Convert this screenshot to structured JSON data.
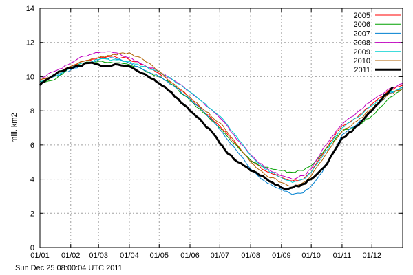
{
  "timestamp": "Sun Dec 25 08:00:04 UTC 2011",
  "chart_data": {
    "type": "line",
    "title": "",
    "xlabel": "",
    "ylabel": "mill. km2",
    "ylim": [
      0,
      14
    ],
    "yticks": [
      0,
      2,
      4,
      6,
      8,
      10,
      12,
      14
    ],
    "xlim": [
      1,
      366
    ],
    "xticks": [
      {
        "day": 1,
        "label": "01/01"
      },
      {
        "day": 32,
        "label": "01/02"
      },
      {
        "day": 60,
        "label": "01/03"
      },
      {
        "day": 91,
        "label": "01/04"
      },
      {
        "day": 121,
        "label": "01/05"
      },
      {
        "day": 152,
        "label": "01/06"
      },
      {
        "day": 182,
        "label": "01/07"
      },
      {
        "day": 213,
        "label": "01/08"
      },
      {
        "day": 244,
        "label": "01/09"
      },
      {
        "day": 274,
        "label": "01/10"
      },
      {
        "day": 305,
        "label": "01/11"
      },
      {
        "day": 335,
        "label": "01/12"
      }
    ],
    "grid": true,
    "legend_position": "top-right",
    "series": [
      {
        "name": "2005",
        "color": "#ff0000",
        "width": 1,
        "x": [
          1,
          15,
          32,
          45,
          60,
          75,
          91,
          105,
          121,
          135,
          152,
          165,
          182,
          196,
          213,
          227,
          244,
          255,
          266,
          274,
          285,
          300,
          305,
          320,
          335,
          350,
          366
        ],
        "y": [
          9.8,
          10.1,
          10.6,
          10.9,
          11.1,
          11.2,
          11.0,
          10.7,
          10.2,
          9.6,
          8.8,
          8.0,
          7.1,
          6.2,
          5.1,
          4.5,
          4.1,
          3.9,
          4.0,
          4.4,
          5.4,
          6.8,
          7.1,
          7.6,
          8.4,
          9.1,
          9.5
        ]
      },
      {
        "name": "2006",
        "color": "#00a000",
        "width": 1,
        "x": [
          1,
          15,
          32,
          45,
          60,
          75,
          91,
          105,
          121,
          135,
          152,
          165,
          182,
          196,
          213,
          227,
          244,
          255,
          266,
          274,
          285,
          300,
          305,
          320,
          335,
          350,
          366
        ],
        "y": [
          9.7,
          9.8,
          10.5,
          10.8,
          10.9,
          10.8,
          10.7,
          10.4,
          10.0,
          9.5,
          8.6,
          7.9,
          7.0,
          6.1,
          5.1,
          4.7,
          4.5,
          4.4,
          4.5,
          4.8,
          5.5,
          6.5,
          6.8,
          7.1,
          7.7,
          8.6,
          9.3
        ]
      },
      {
        "name": "2007",
        "color": "#0080d0",
        "width": 1,
        "x": [
          1,
          15,
          32,
          45,
          60,
          75,
          91,
          105,
          121,
          135,
          152,
          165,
          182,
          196,
          213,
          227,
          244,
          255,
          266,
          274,
          285,
          300,
          305,
          320,
          335,
          350,
          366
        ],
        "y": [
          9.6,
          10.0,
          10.4,
          10.7,
          11.0,
          11.1,
          10.8,
          10.4,
          10.0,
          9.5,
          8.7,
          8.0,
          6.9,
          5.9,
          4.6,
          3.9,
          3.4,
          3.1,
          3.2,
          3.6,
          4.4,
          6.0,
          6.6,
          7.2,
          8.0,
          8.9,
          9.4
        ]
      },
      {
        "name": "2008",
        "color": "#c000c0",
        "width": 1,
        "x": [
          1,
          15,
          32,
          45,
          60,
          75,
          91,
          105,
          121,
          135,
          152,
          165,
          182,
          196,
          213,
          227,
          244,
          255,
          266,
          274,
          285,
          300,
          305,
          320,
          335,
          350,
          366
        ],
        "y": [
          9.9,
          10.3,
          10.8,
          11.2,
          11.4,
          11.4,
          11.1,
          10.7,
          10.3,
          9.8,
          9.1,
          8.5,
          7.6,
          6.6,
          5.4,
          4.7,
          4.2,
          4.0,
          4.2,
          4.6,
          5.7,
          6.9,
          7.2,
          7.9,
          8.6,
          9.2,
          9.6
        ]
      },
      {
        "name": "2009",
        "color": "#00d0d0",
        "width": 1,
        "x": [
          1,
          15,
          32,
          45,
          60,
          75,
          91,
          105,
          121,
          135,
          152,
          165,
          182,
          196,
          213,
          227,
          244,
          255,
          266,
          274,
          285,
          300,
          305,
          320,
          335,
          350,
          366
        ],
        "y": [
          9.7,
          10.0,
          10.5,
          10.8,
          11.0,
          11.0,
          10.9,
          10.6,
          10.3,
          9.8,
          9.1,
          8.5,
          7.7,
          6.7,
          5.4,
          4.6,
          4.1,
          3.8,
          4.0,
          4.4,
          5.3,
          6.6,
          7.0,
          7.6,
          8.3,
          9.0,
          9.4
        ]
      },
      {
        "name": "2010",
        "color": "#b06000",
        "width": 1,
        "x": [
          1,
          15,
          32,
          45,
          60,
          75,
          91,
          105,
          121,
          135,
          152,
          165,
          182,
          196,
          213,
          227,
          244,
          255,
          266,
          274,
          285,
          300,
          305,
          320,
          335,
          350,
          366
        ],
        "y": [
          9.8,
          10.1,
          10.6,
          10.9,
          11.1,
          11.3,
          11.4,
          11.0,
          10.3,
          9.6,
          8.8,
          8.1,
          7.3,
          6.3,
          5.0,
          4.3,
          3.8,
          3.6,
          3.8,
          4.2,
          5.1,
          6.4,
          6.8,
          7.4,
          8.1,
          8.9,
          9.3
        ]
      },
      {
        "name": "2011",
        "color": "#000000",
        "width": 3,
        "x": [
          1,
          5,
          10,
          20,
          32,
          40,
          50,
          60,
          70,
          80,
          91,
          100,
          110,
          121,
          130,
          140,
          152,
          165,
          175,
          182,
          190,
          200,
          213,
          225,
          235,
          244,
          250,
          255,
          265,
          274,
          280,
          290,
          300,
          305,
          315,
          325,
          335,
          345,
          356
        ],
        "y": [
          9.5,
          9.7,
          9.9,
          10.3,
          10.5,
          10.6,
          10.8,
          10.7,
          10.6,
          10.7,
          10.6,
          10.3,
          10.0,
          9.6,
          9.2,
          8.7,
          8.0,
          7.3,
          6.7,
          6.1,
          5.5,
          5.0,
          4.5,
          4.2,
          3.8,
          3.5,
          3.4,
          3.5,
          3.7,
          4.0,
          4.3,
          4.9,
          5.9,
          6.4,
          6.8,
          7.4,
          8.0,
          8.7,
          9.4
        ]
      }
    ]
  }
}
